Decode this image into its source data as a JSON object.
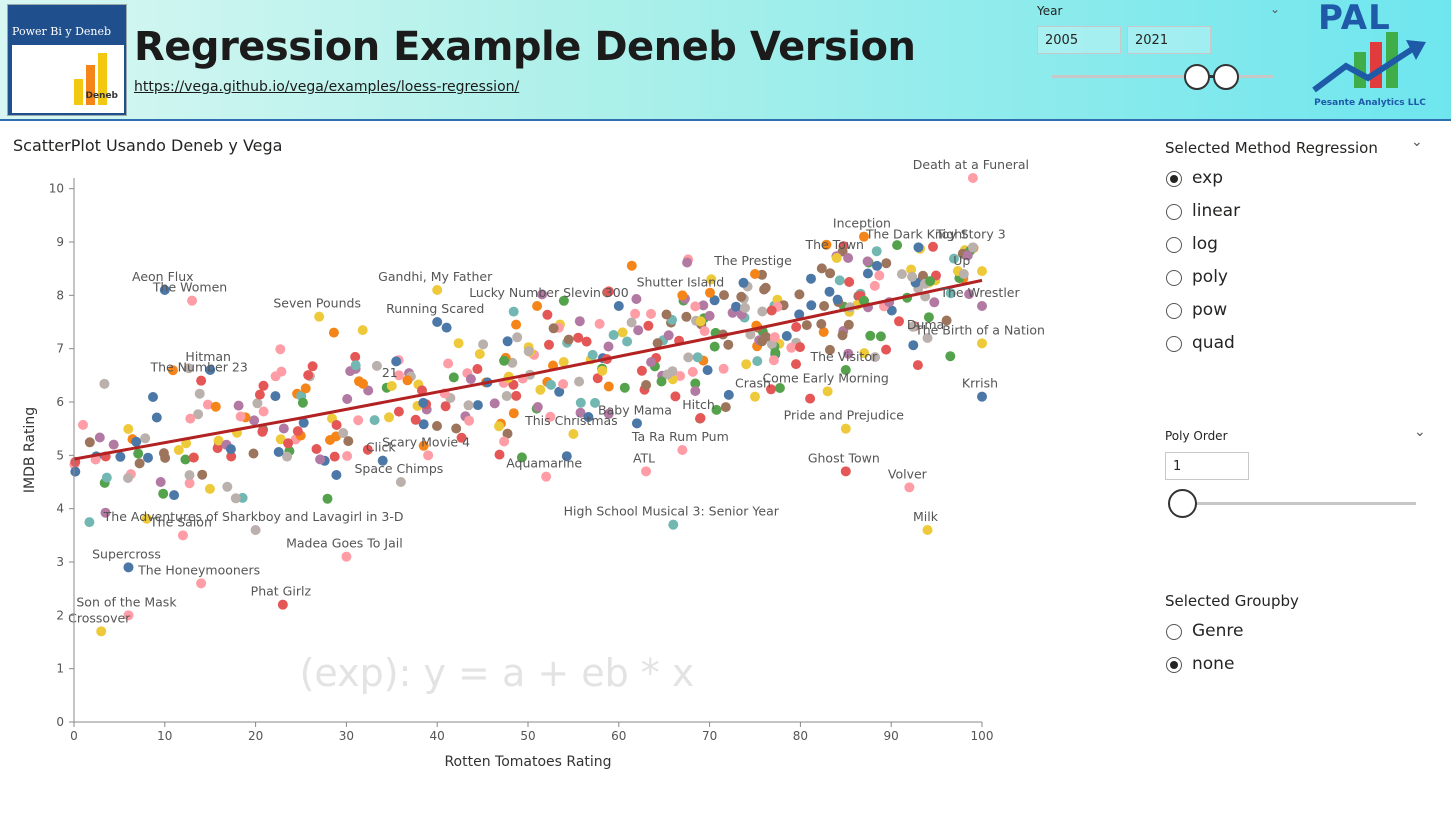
{
  "header": {
    "thumbnail_text": "Power Bi y Deneb",
    "thumbnail_badge": "Deneb",
    "title": "Regression Example Deneb Version",
    "link": "https://vega.github.io/vega/examples/loess-regression/",
    "year_filter": {
      "label": "Year",
      "start": "2005",
      "end": "2021",
      "range": [
        2005,
        2021
      ]
    },
    "logo": {
      "name": "PAL",
      "subtitle": "Pesante Analytics LLC"
    }
  },
  "chart_title": "ScatterPlot Usando Deneb y Vega",
  "method_slicer": {
    "title": "Selected Method Regression",
    "options": [
      "exp",
      "linear",
      "log",
      "poly",
      "pow",
      "quad"
    ],
    "selected": "exp"
  },
  "poly_order": {
    "title": "Poly Order",
    "value": "1",
    "min": 1,
    "max": 10
  },
  "groupby_slicer": {
    "title": "Selected Groupby",
    "options": [
      "Genre",
      "none"
    ],
    "selected": "none"
  },
  "colors": {
    "accent": "#2f6fb0",
    "regression": "#b22222",
    "palette": [
      "#4c78a8",
      "#f58518",
      "#e45756",
      "#72b7b2",
      "#54a24b",
      "#eeca3b",
      "#b279a2",
      "#ff9da6",
      "#9d755d",
      "#bab0ac"
    ]
  },
  "chart_data": {
    "type": "scatter",
    "xlabel": "Rotten Tomatoes Rating",
    "ylabel": "IMDB Rating",
    "xlim": [
      0,
      100
    ],
    "ylim": [
      0,
      10.2
    ],
    "xticks": [
      0,
      10,
      20,
      30,
      40,
      50,
      60,
      70,
      80,
      90,
      100
    ],
    "yticks": [
      0,
      1,
      2,
      3,
      4,
      5,
      6,
      7,
      8,
      9,
      10
    ],
    "grid": false,
    "watermark": "(exp): y = a + eb * x",
    "regression_line": {
      "x": [
        0,
        25,
        50,
        75,
        100
      ],
      "y": [
        4.93,
        5.7,
        6.51,
        7.37,
        8.28
      ]
    },
    "labeled_points": [
      {
        "label": "Death at a Funeral",
        "x": 99,
        "y": 10.2,
        "c": 7
      },
      {
        "label": "Inception",
        "x": 87,
        "y": 9.1,
        "c": 1
      },
      {
        "label": "The Dark Knight",
        "x": 93,
        "y": 8.9,
        "c": 0
      },
      {
        "label": "Toy Story 3",
        "x": 99,
        "y": 8.9,
        "c": 9
      },
      {
        "label": "The Prestige",
        "x": 75,
        "y": 8.4,
        "c": 1
      },
      {
        "label": "The Town",
        "x": 84,
        "y": 8.7,
        "c": 5
      },
      {
        "label": "Up",
        "x": 98,
        "y": 8.4,
        "c": 9
      },
      {
        "label": "Aeon Flux",
        "x": 10,
        "y": 8.1,
        "c": 0
      },
      {
        "label": "Gandhi, My Father",
        "x": 40,
        "y": 8.1,
        "c": 5
      },
      {
        "label": "Lucky Number Slevin",
        "x": 51,
        "y": 7.8,
        "c": 1
      },
      {
        "label": "300",
        "x": 60,
        "y": 7.8,
        "c": 0
      },
      {
        "label": "Shutter Island",
        "x": 67,
        "y": 8.0,
        "c": 1
      },
      {
        "label": "The Wrestler",
        "x": 100,
        "y": 7.8,
        "c": 6
      },
      {
        "label": "The Women",
        "x": 13,
        "y": 7.9,
        "c": 7
      },
      {
        "label": "Seven Pounds",
        "x": 27,
        "y": 7.6,
        "c": 5
      },
      {
        "label": "Running Scared",
        "x": 40,
        "y": 7.5,
        "c": 0
      },
      {
        "label": "Duma",
        "x": 94,
        "y": 7.2,
        "c": 9
      },
      {
        "label": "Hitman",
        "x": 15,
        "y": 6.6,
        "c": 0
      },
      {
        "label": "The Birth of a Nation",
        "x": 100,
        "y": 7.1,
        "c": 5
      },
      {
        "label": "The Number 23",
        "x": 14,
        "y": 6.4,
        "c": 2
      },
      {
        "label": "21",
        "x": 35,
        "y": 6.3,
        "c": 5
      },
      {
        "label": "The Visitor",
        "x": 85,
        "y": 6.6,
        "c": 4
      },
      {
        "label": "Crash",
        "x": 75,
        "y": 6.1,
        "c": 5
      },
      {
        "label": "Come Early Morning",
        "x": 83,
        "y": 6.2,
        "c": 5
      },
      {
        "label": "Krrish",
        "x": 100,
        "y": 6.1,
        "c": 0
      },
      {
        "label": "Baby Mama",
        "x": 62,
        "y": 5.6,
        "c": 0
      },
      {
        "label": "Hitch",
        "x": 69,
        "y": 5.7,
        "c": 2
      },
      {
        "label": "Ta Ra Rum Pum",
        "x": 67,
        "y": 5.1,
        "c": 7
      },
      {
        "label": "Click",
        "x": 34,
        "y": 4.9,
        "c": 0
      },
      {
        "label": "Scary Movie 4",
        "x": 39,
        "y": 5.0,
        "c": 7
      },
      {
        "label": "This Christmas",
        "x": 55,
        "y": 5.4,
        "c": 5
      },
      {
        "label": "Aquamarine",
        "x": 52,
        "y": 4.6,
        "c": 7
      },
      {
        "label": "Pride and Prejudice",
        "x": 85,
        "y": 5.5,
        "c": 5
      },
      {
        "label": "Ghost Town",
        "x": 85,
        "y": 4.7,
        "c": 2
      },
      {
        "label": "Volver",
        "x": 92,
        "y": 4.4,
        "c": 7
      },
      {
        "label": "ATL",
        "x": 63,
        "y": 4.7,
        "c": 7
      },
      {
        "label": "Space Chimps",
        "x": 36,
        "y": 4.5,
        "c": 9
      },
      {
        "label": "High School Musical 3: Senior Year",
        "x": 66,
        "y": 3.7,
        "c": 3
      },
      {
        "label": "Milk",
        "x": 94,
        "y": 3.6,
        "c": 5
      },
      {
        "label": "The Adventures of Sharkboy and Lavagirl in 3-D",
        "x": 20,
        "y": 3.6,
        "c": 9
      },
      {
        "label": "The Salon",
        "x": 12,
        "y": 3.5,
        "c": 7
      },
      {
        "label": "Supercross",
        "x": 6,
        "y": 2.9,
        "c": 0
      },
      {
        "label": "Madea Goes To Jail",
        "x": 30,
        "y": 3.1,
        "c": 7
      },
      {
        "label": "The Honeymooners",
        "x": 14,
        "y": 2.6,
        "c": 7
      },
      {
        "label": "Son of the Mask",
        "x": 6,
        "y": 2.0,
        "c": 7
      },
      {
        "label": "Phat Girlz",
        "x": 23,
        "y": 2.2,
        "c": 2
      },
      {
        "label": "Crossover",
        "x": 3,
        "y": 1.7,
        "c": 5
      }
    ]
  }
}
